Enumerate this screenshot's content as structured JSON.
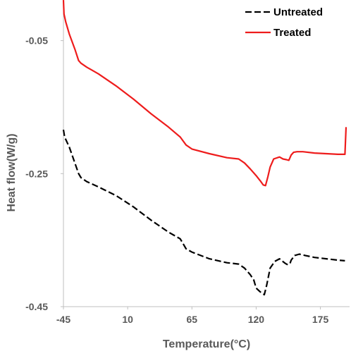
{
  "chart_data": {
    "type": "line",
    "title": "",
    "xlabel": "Temperature(°C)",
    "ylabel": "Heat flow(W/g)",
    "xlim": [
      -45,
      200
    ],
    "ylim": [
      -0.45,
      0.01
    ],
    "x_ticks": [
      -45,
      10,
      65,
      120,
      175
    ],
    "x_tick_labels": [
      "-45",
      "10",
      "65",
      "120",
      "175"
    ],
    "y_ticks": [
      -0.05,
      -0.25,
      -0.45
    ],
    "y_tick_labels": [
      "-0.05",
      "-0.25",
      "-0.45"
    ],
    "grid": false,
    "legend_position": "top-right",
    "series": [
      {
        "name": "Untreated",
        "color": "#000000",
        "style": "dashed",
        "x": [
          -45,
          -44,
          -40,
          -36,
          -32,
          -30,
          -25,
          -15,
          0,
          15,
          30,
          45,
          55,
          60,
          65,
          80,
          95,
          105,
          110,
          115,
          118,
          120,
          123,
          125,
          127,
          129,
          132,
          136,
          140,
          142,
          145,
          147,
          149,
          150,
          153,
          157,
          162,
          170,
          180,
          190,
          196
        ],
        "y": [
          -0.184,
          -0.195,
          -0.21,
          -0.23,
          -0.25,
          -0.256,
          -0.262,
          -0.27,
          -0.283,
          -0.3,
          -0.32,
          -0.338,
          -0.348,
          -0.363,
          -0.368,
          -0.378,
          -0.384,
          -0.386,
          -0.392,
          -0.402,
          -0.41,
          -0.422,
          -0.427,
          -0.43,
          -0.432,
          -0.418,
          -0.392,
          -0.382,
          -0.378,
          -0.381,
          -0.385,
          -0.387,
          -0.385,
          -0.38,
          -0.373,
          -0.371,
          -0.373,
          -0.376,
          -0.378,
          -0.38,
          -0.381
        ]
      },
      {
        "name": "Treated",
        "color": "#ee1c1c",
        "style": "solid",
        "x": [
          -45,
          -44.5,
          -43,
          -40,
          -35,
          -32,
          -30,
          -25,
          -15,
          0,
          15,
          30,
          45,
          55,
          60,
          65,
          80,
          95,
          105,
          110,
          115,
          120,
          124,
          126,
          128,
          130,
          132,
          135,
          140,
          143,
          146,
          148,
          150,
          152,
          155,
          160,
          170,
          180,
          190,
          196,
          197
        ],
        "y": [
          0.011,
          -0.01,
          -0.022,
          -0.04,
          -0.064,
          -0.08,
          -0.084,
          -0.09,
          -0.1,
          -0.118,
          -0.138,
          -0.16,
          -0.18,
          -0.195,
          -0.207,
          -0.213,
          -0.22,
          -0.226,
          -0.228,
          -0.234,
          -0.243,
          -0.253,
          -0.262,
          -0.267,
          -0.268,
          -0.255,
          -0.24,
          -0.228,
          -0.225,
          -0.228,
          -0.229,
          -0.23,
          -0.222,
          -0.218,
          -0.217,
          -0.217,
          -0.219,
          -0.22,
          -0.221,
          -0.221,
          -0.18
        ]
      }
    ]
  }
}
